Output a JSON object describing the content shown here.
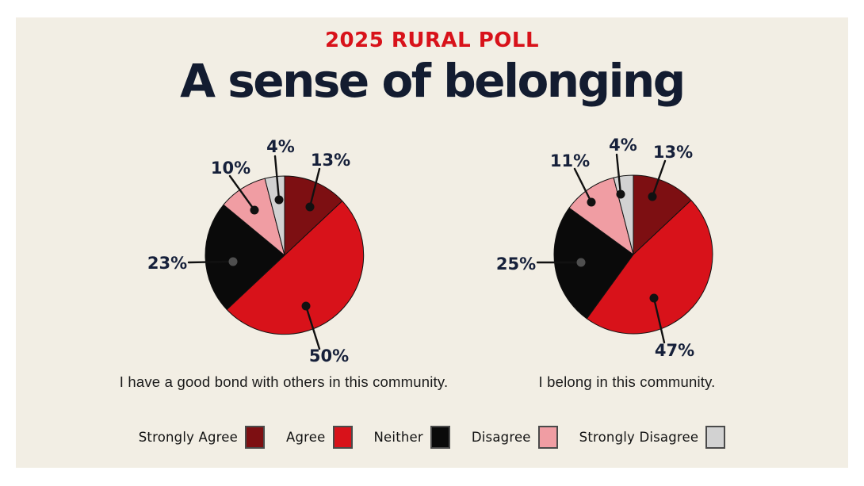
{
  "page": {
    "background": "#ffffff",
    "canvas_background": "#f2eee4"
  },
  "header": {
    "kicker": "2025 RURAL POLL",
    "kicker_color": "#d8121a",
    "title": "A sense of belonging",
    "title_color": "#131c30"
  },
  "legend": {
    "items": [
      {
        "label": "Strongly Agree",
        "color": "#7d0f12"
      },
      {
        "label": "Agree",
        "color": "#d8121a"
      },
      {
        "label": "Neither",
        "color": "#0a0a0a"
      },
      {
        "label": "Disagree",
        "color": "#f09da3"
      },
      {
        "label": "Strongly Disagree",
        "color": "#d2d2d2"
      }
    ]
  },
  "chart_data": [
    {
      "type": "pie",
      "title": "I have a good bond with others in this community.",
      "categories": [
        "Strongly Agree",
        "Agree",
        "Neither",
        "Disagree",
        "Strongly Disagree"
      ],
      "values": [
        13,
        50,
        23,
        10,
        4
      ],
      "point_labels": [
        "13%",
        "50%",
        "23%",
        "10%",
        "4%"
      ],
      "colors": [
        "#7d0f12",
        "#d8121a",
        "#0a0a0a",
        "#f09da3",
        "#d2d2d2"
      ],
      "start_angle_deg": 0,
      "direction": "clockwise"
    },
    {
      "type": "pie",
      "title": "I belong in this community.",
      "categories": [
        "Strongly Agree",
        "Agree",
        "Neither",
        "Disagree",
        "Strongly Disagree"
      ],
      "values": [
        13,
        47,
        25,
        11,
        4
      ],
      "point_labels": [
        "13%",
        "47%",
        "25%",
        "11%",
        "4%"
      ],
      "colors": [
        "#7d0f12",
        "#d8121a",
        "#0a0a0a",
        "#f09da3",
        "#d2d2d2"
      ],
      "start_angle_deg": 0,
      "direction": "clockwise"
    }
  ]
}
